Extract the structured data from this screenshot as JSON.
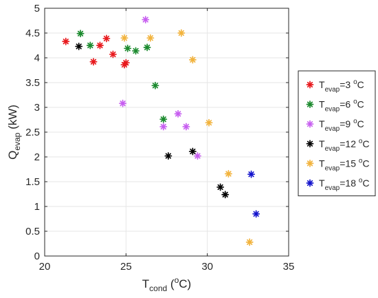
{
  "chart_data": {
    "type": "scatter",
    "xlabel": {
      "main": "T",
      "sub": "cond",
      "pre": " (",
      "sup": "o",
      "post": "C)"
    },
    "ylabel": {
      "main": "Q",
      "sub": "evap",
      "post": " (kW)"
    },
    "xlim": [
      20,
      35
    ],
    "ylim": [
      0,
      5
    ],
    "xticks": [
      20,
      25,
      30,
      35
    ],
    "yticks": [
      0,
      0.5,
      1,
      1.5,
      2,
      2.5,
      3,
      3.5,
      4,
      4.5,
      5
    ],
    "ytick_labels": [
      "0",
      "0.5",
      "1",
      "1.5",
      "2",
      "2.5",
      "3",
      "3.5",
      "4",
      "4.5",
      "5"
    ],
    "grid": true,
    "legend_position": "right",
    "marker": "asterisk",
    "series": [
      {
        "name": {
          "main": "T",
          "sub": "evap",
          "eq": "=3 ",
          "sup": "o",
          "post": "C"
        },
        "color": "#e8191d",
        "points": [
          [
            21.3,
            4.33
          ],
          [
            23.0,
            3.92
          ],
          [
            23.4,
            4.25
          ],
          [
            23.8,
            4.39
          ],
          [
            24.2,
            4.07
          ],
          [
            24.9,
            3.86
          ],
          [
            25.0,
            3.9
          ]
        ]
      },
      {
        "name": {
          "main": "T",
          "sub": "evap",
          "eq": "=6 ",
          "sup": "o",
          "post": "C"
        },
        "color": "#1b8a2e",
        "points": [
          [
            22.2,
            4.49
          ],
          [
            22.8,
            4.25
          ],
          [
            25.1,
            4.19
          ],
          [
            25.6,
            4.14
          ],
          [
            26.3,
            4.21
          ],
          [
            26.8,
            3.44
          ],
          [
            27.3,
            2.76
          ]
        ]
      },
      {
        "name": {
          "main": "T",
          "sub": "evap",
          "eq": "=9 ",
          "sup": "o",
          "post": "C"
        },
        "color": "#c75ef0",
        "points": [
          [
            26.2,
            4.77
          ],
          [
            24.8,
            3.08
          ],
          [
            27.3,
            2.61
          ],
          [
            28.2,
            2.87
          ],
          [
            28.7,
            2.61
          ],
          [
            29.4,
            2.02
          ]
        ]
      },
      {
        "name": {
          "main": "T",
          "sub": "evap",
          "eq": "=12 ",
          "sup": "o",
          "post": "C"
        },
        "color": "#000000",
        "points": [
          [
            22.1,
            4.23
          ],
          [
            27.6,
            2.02
          ],
          [
            29.1,
            2.11
          ],
          [
            30.8,
            1.39
          ],
          [
            31.1,
            1.24
          ]
        ]
      },
      {
        "name": {
          "main": "T",
          "sub": "evap",
          "eq": "=15 ",
          "sup": "o",
          "post": "C"
        },
        "color": "#f2b33d",
        "points": [
          [
            24.9,
            4.4
          ],
          [
            26.5,
            4.4
          ],
          [
            28.4,
            4.5
          ],
          [
            29.1,
            3.96
          ],
          [
            30.1,
            2.69
          ],
          [
            31.3,
            1.66
          ],
          [
            32.6,
            0.28
          ]
        ]
      },
      {
        "name": {
          "main": "T",
          "sub": "evap",
          "eq": "=18 ",
          "sup": "o",
          "post": "C"
        },
        "color": "#1212cc",
        "points": [
          [
            32.7,
            1.65
          ],
          [
            33.0,
            0.85
          ]
        ]
      }
    ]
  }
}
